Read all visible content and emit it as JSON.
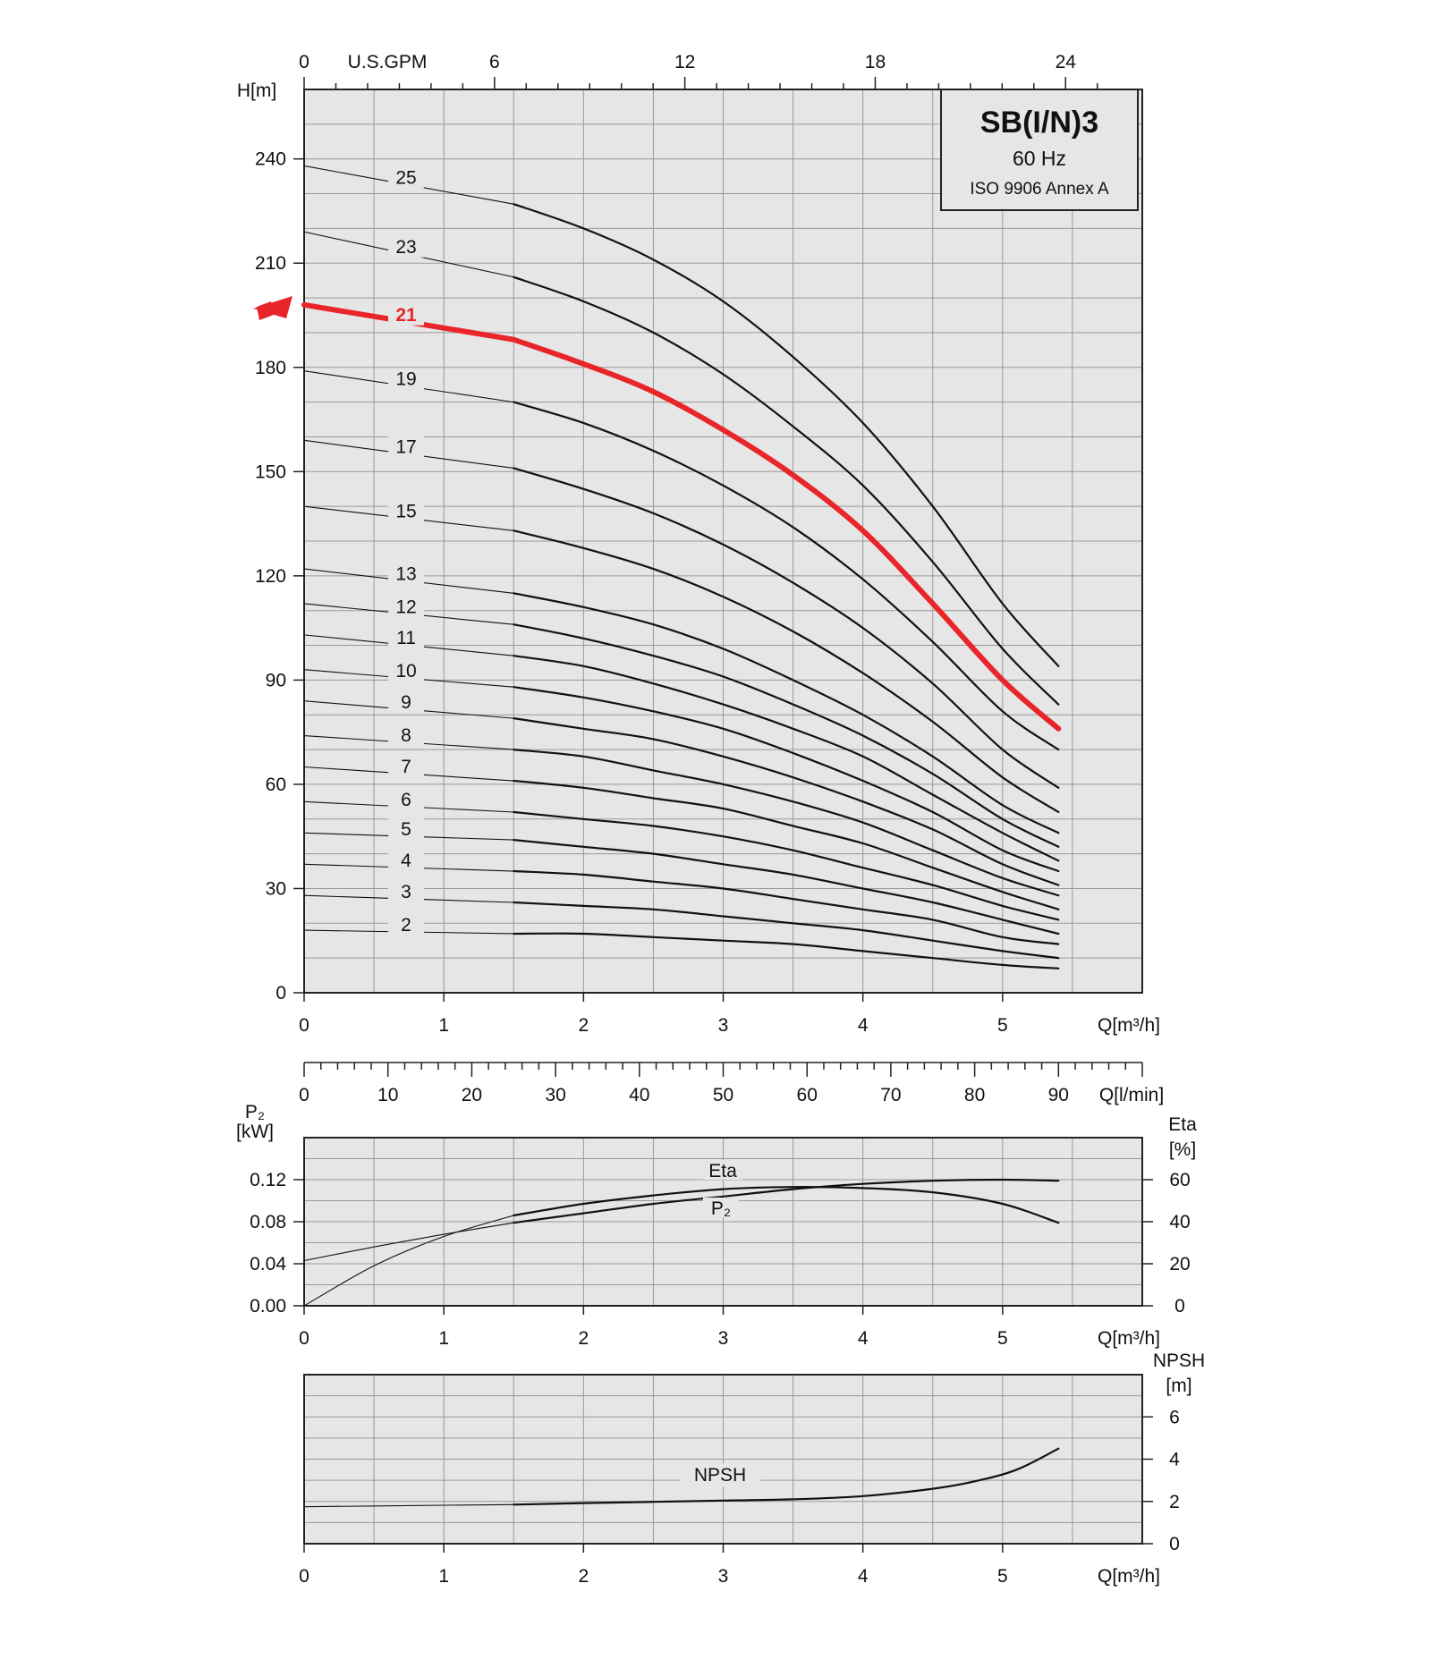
{
  "legend": {
    "title": "SB(I/N)3",
    "frequency": "60 Hz",
    "standard": "ISO 9906 Annex A"
  },
  "highlight_color": "#e8262a",
  "chart_data": [
    {
      "type": "line",
      "name": "head",
      "ylabel": "H[m]",
      "xlabel": "Q[m³/h]",
      "top_axis_label": "U.S.GPM",
      "top_axis_ticks": [
        0,
        6,
        12,
        18,
        24
      ],
      "xlim": [
        0,
        6
      ],
      "ylim": [
        0,
        260
      ],
      "xticks": [
        0,
        1,
        2,
        3,
        4,
        5
      ],
      "yticks": [
        0,
        30,
        60,
        90,
        120,
        150,
        180,
        210,
        240
      ],
      "grid": true,
      "highlight_stages": "21",
      "x": [
        0,
        1.5,
        2,
        2.5,
        3,
        3.5,
        4,
        4.5,
        5,
        5.4
      ],
      "series": [
        {
          "name": "25",
          "values": [
            238,
            227,
            220,
            211,
            199,
            183,
            164,
            140,
            112,
            94
          ]
        },
        {
          "name": "23",
          "values": [
            219,
            206,
            199,
            190,
            178,
            163,
            146,
            124,
            99,
            83
          ]
        },
        {
          "name": "21",
          "values": [
            198,
            188,
            181,
            173,
            162,
            149,
            133,
            112,
            90,
            76
          ]
        },
        {
          "name": "19",
          "values": [
            179,
            170,
            164,
            156,
            146,
            134,
            119,
            101,
            81,
            70
          ]
        },
        {
          "name": "17",
          "values": [
            159,
            151,
            145,
            138,
            129,
            118,
            105,
            89,
            70,
            59
          ]
        },
        {
          "name": "15",
          "values": [
            140,
            133,
            128,
            122,
            114,
            104,
            92,
            78,
            62,
            52
          ]
        },
        {
          "name": "13",
          "values": [
            122,
            115,
            111,
            106,
            99,
            90,
            80,
            68,
            54,
            46
          ]
        },
        {
          "name": "12",
          "values": [
            112,
            106,
            102,
            97,
            91,
            83,
            74,
            63,
            50,
            42
          ]
        },
        {
          "name": "11",
          "values": [
            103,
            97,
            94,
            89,
            83,
            76,
            68,
            57,
            46,
            38
          ]
        },
        {
          "name": "10",
          "values": [
            93,
            88,
            85,
            81,
            76,
            69,
            61,
            52,
            41,
            35
          ]
        },
        {
          "name": "9",
          "values": [
            84,
            79,
            76,
            73,
            68,
            62,
            55,
            47,
            37,
            31
          ]
        },
        {
          "name": "8",
          "values": [
            74,
            70,
            68,
            64,
            60,
            55,
            49,
            41,
            33,
            28
          ]
        },
        {
          "name": "7",
          "values": [
            65,
            61,
            59,
            56,
            53,
            48,
            43,
            36,
            29,
            24
          ]
        },
        {
          "name": "6",
          "values": [
            55,
            52,
            50,
            48,
            45,
            41,
            36,
            31,
            25,
            21
          ]
        },
        {
          "name": "5",
          "values": [
            46,
            44,
            42,
            40,
            37,
            34,
            30,
            26,
            21,
            17
          ]
        },
        {
          "name": "4",
          "values": [
            37,
            35,
            34,
            32,
            30,
            27,
            24,
            21,
            16,
            14
          ]
        },
        {
          "name": "3",
          "values": [
            28,
            26,
            25,
            24,
            22,
            20,
            18,
            15,
            12,
            10
          ]
        },
        {
          "name": "2",
          "values": [
            18,
            17,
            17,
            16,
            15,
            14,
            12,
            10,
            8,
            7
          ]
        }
      ]
    },
    {
      "type": "line",
      "name": "flow_lmin_axis",
      "xlabel": "Q[l/min]",
      "xlim": [
        0,
        100
      ],
      "xticks": [
        0,
        10,
        20,
        30,
        40,
        50,
        60,
        70,
        80,
        90
      ]
    },
    {
      "type": "line",
      "name": "power_efficiency",
      "ylabel": "P₂\n[kW]",
      "ylabel_right": "Eta\n[%]",
      "xlabel": "Q[m³/h]",
      "xlim": [
        0,
        6
      ],
      "ylim": [
        0,
        0.16
      ],
      "ylim_right": [
        0,
        80
      ],
      "xticks": [
        0,
        1,
        2,
        3,
        4,
        5
      ],
      "yticks": [
        "0.00",
        "0.04",
        "0.08",
        "0.12"
      ],
      "yticks_right": [
        0,
        20,
        40,
        60
      ],
      "grid": true,
      "series": [
        {
          "name": "Eta",
          "axis": "right",
          "x": [
            0,
            0.5,
            1,
            1.5,
            2,
            2.5,
            3,
            3.5,
            4,
            4.5,
            5,
            5.4
          ],
          "values": [
            0,
            19,
            33,
            43,
            48.5,
            52.5,
            55.5,
            56.5,
            56,
            54,
            48.5,
            39.5
          ]
        },
        {
          "name": "P₂",
          "axis": "left",
          "x": [
            0,
            0.5,
            1,
            1.5,
            2,
            2.5,
            3,
            3.5,
            4,
            4.5,
            5,
            5.4
          ],
          "values": [
            0.043,
            0.056,
            0.068,
            0.079,
            0.088,
            0.097,
            0.104,
            0.111,
            0.116,
            0.119,
            0.12,
            0.119
          ]
        }
      ]
    },
    {
      "type": "line",
      "name": "npsh",
      "ylabel_right": "NPSH\n[m]",
      "xlabel": "Q[m³/h]",
      "xlim": [
        0,
        6
      ],
      "ylim": [
        0,
        8
      ],
      "xticks": [
        0,
        1,
        2,
        3,
        4,
        5
      ],
      "yticks_right": [
        0,
        2,
        4,
        6
      ],
      "grid": true,
      "series": [
        {
          "name": "NPSH",
          "x": [
            0,
            1,
            1.5,
            2,
            2.5,
            3,
            3.5,
            4,
            4.5,
            4.8,
            5.1,
            5.4
          ],
          "values": [
            1.75,
            1.82,
            1.85,
            1.92,
            1.98,
            2.04,
            2.1,
            2.25,
            2.6,
            2.95,
            3.5,
            4.5
          ]
        }
      ]
    }
  ]
}
